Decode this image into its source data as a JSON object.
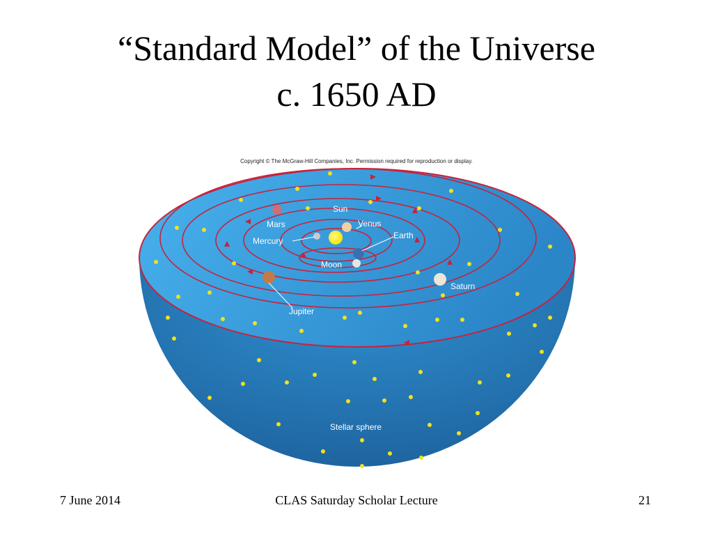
{
  "slide": {
    "title_line1": "“Standard Model” of the Universe",
    "title_line2": "c. 1650 AD"
  },
  "figure": {
    "copyright": "Copyright © The McGraw-Hill Companies, Inc. Permission required for reproduction or display.",
    "labels": {
      "sun": "Sun",
      "venus": "Venus",
      "mars": "Mars",
      "mercury": "Mercury",
      "earth": "Earth",
      "moon": "Moon",
      "saturn": "Saturn",
      "jupiter": "Jupiter",
      "stellar_sphere": "Stellar sphere"
    },
    "colors": {
      "sphere_blue": "#2b82bf",
      "top_blue": "#3aa4e0",
      "orbit_red": "#c8223c",
      "star_yellow": "#f2e21a",
      "sun_yellow": "#ffee00"
    }
  },
  "footer": {
    "date": "7 June 2014",
    "center": "CLAS Saturday Scholar Lecture",
    "page": "21"
  }
}
